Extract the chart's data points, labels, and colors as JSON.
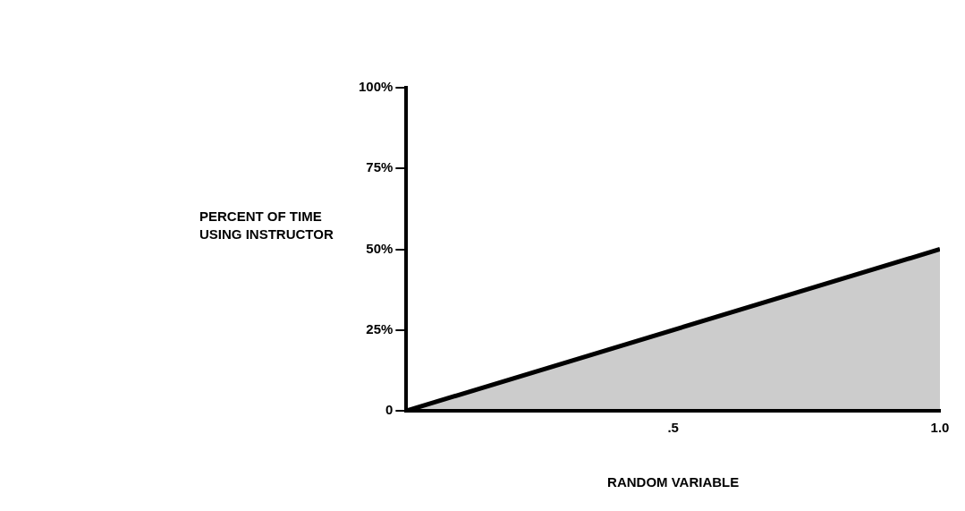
{
  "chart_data": {
    "type": "area",
    "xlabel": "RANDOM VARIABLE",
    "ylabel": "PERCENT OF TIME\nUSING INSTRUCTOR",
    "x": [
      0,
      1
    ],
    "series": [
      {
        "color": "#000000",
        "values": [
          0,
          50
        ]
      }
    ],
    "xlim": [
      0,
      1
    ],
    "xticks": [
      {
        "value": 0.5,
        "label": ".5"
      },
      {
        "value": 1,
        "label": "1.0"
      }
    ],
    "ylim": [
      0,
      100
    ],
    "yticks": [
      {
        "value": 0,
        "label": "0"
      },
      {
        "value": 25,
        "label": "25%"
      },
      {
        "value": 50,
        "label": "50%"
      },
      {
        "value": 75,
        "label": "75%"
      },
      {
        "value": 100,
        "label": "100%"
      }
    ]
  }
}
